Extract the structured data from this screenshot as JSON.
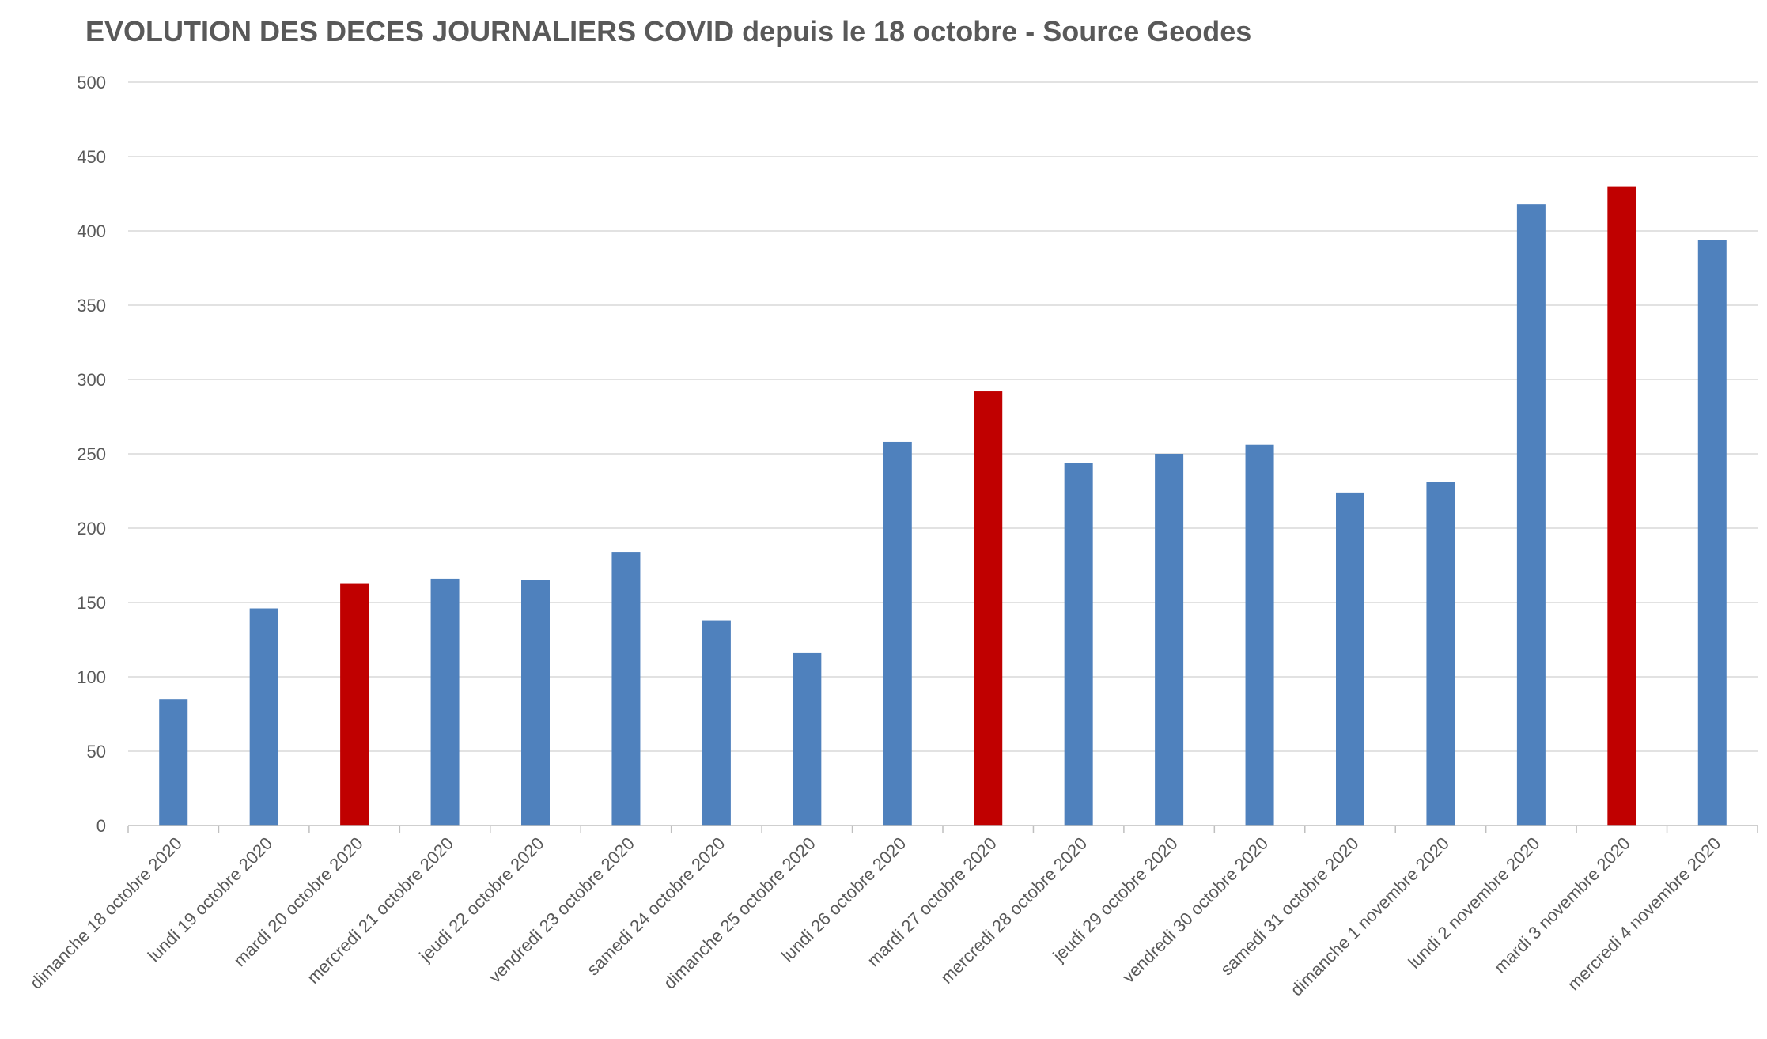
{
  "chart_data": {
    "type": "bar",
    "title": "EVOLUTION DES DECES JOURNALIERS COVID depuis le 18 octobre -  Source Geodes",
    "xlabel": "",
    "ylabel": "",
    "ylim": [
      0,
      500
    ],
    "yticks": [
      0,
      50,
      100,
      150,
      200,
      250,
      300,
      350,
      400,
      450,
      500
    ],
    "grid": true,
    "legend": "none",
    "colors": {
      "default": "#4f81bd",
      "highlight": "#c00000"
    },
    "categories": [
      "dimanche 18 octobre 2020",
      "lundi 19 octobre 2020",
      "mardi 20 octobre 2020",
      "mercredi 21 octobre 2020",
      "jeudi 22 octobre 2020",
      "vendredi 23 octobre 2020",
      "samedi 24 octobre 2020",
      "dimanche 25 octobre 2020",
      "lundi 26 octobre 2020",
      "mardi 27 octobre 2020",
      "mercredi 28 octobre 2020",
      "jeudi 29 octobre 2020",
      "vendredi 30 octobre 2020",
      "samedi 31 octobre 2020",
      "dimanche 1 novembre 2020",
      "lundi 2 novembre 2020",
      "mardi 3 novembre 2020",
      "mercredi 4 novembre 2020"
    ],
    "values": [
      85,
      146,
      163,
      166,
      165,
      184,
      138,
      116,
      258,
      292,
      244,
      250,
      256,
      224,
      231,
      418,
      430,
      394
    ],
    "highlight": [
      false,
      false,
      true,
      false,
      false,
      false,
      false,
      false,
      false,
      true,
      false,
      false,
      false,
      false,
      false,
      false,
      true,
      false
    ]
  }
}
